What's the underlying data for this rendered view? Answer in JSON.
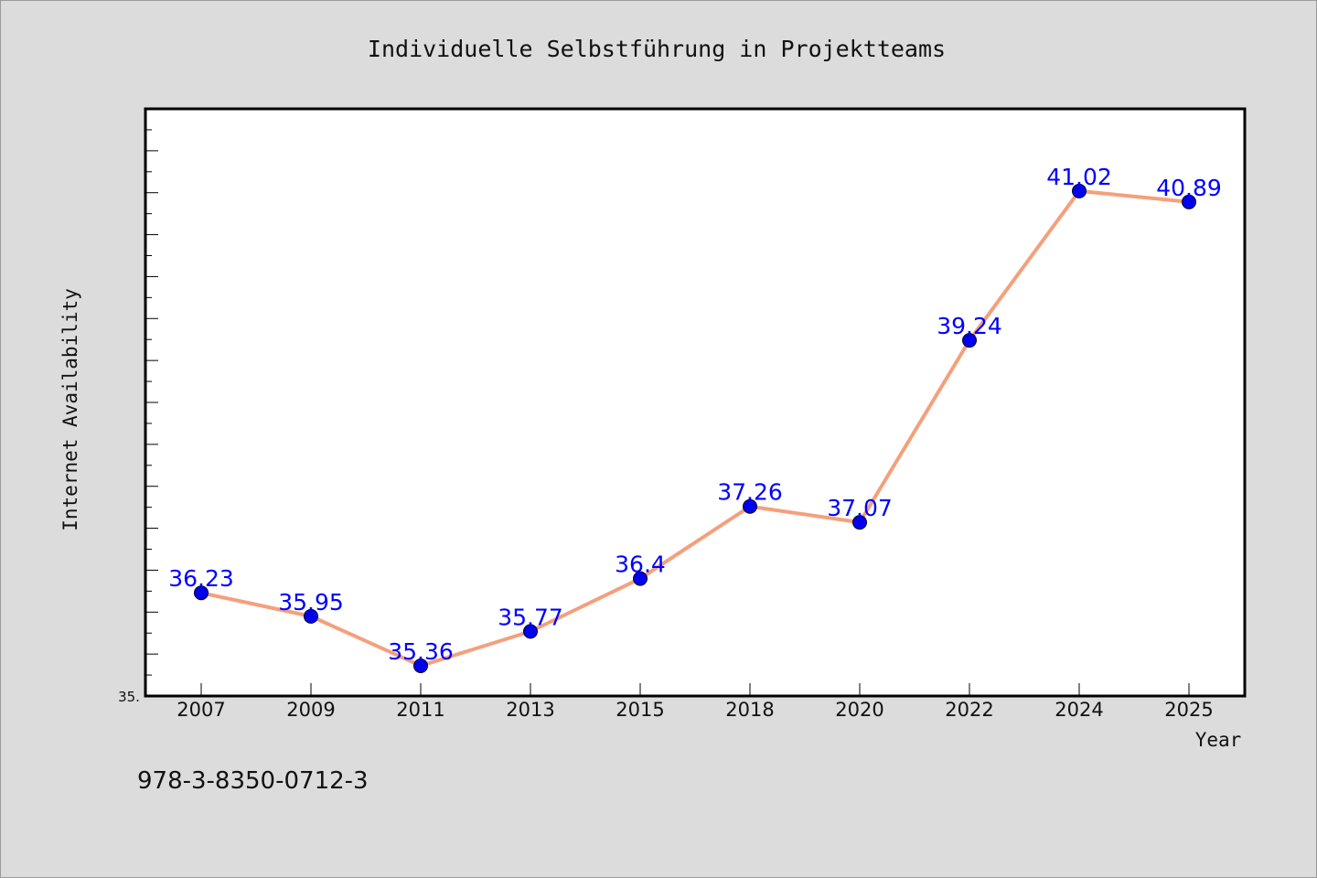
{
  "chart_data": {
    "type": "line",
    "title": "Individuelle Selbstführung in Projektteams",
    "xlabel": "Year",
    "ylabel": "Internet Availability",
    "categories": [
      "2007",
      "2009",
      "2011",
      "2013",
      "2015",
      "2018",
      "2020",
      "2022",
      "2024",
      "2025"
    ],
    "series": [
      {
        "values": [
          36.23,
          35.95,
          35.36,
          35.77,
          36.4,
          37.26,
          37.07,
          39.24,
          41.02,
          40.89
        ],
        "data_labels": [
          "36.23",
          "35.95",
          "35.36",
          "35.77",
          "36.4",
          "37.26",
          "37.07",
          "39.24",
          "41.02",
          "40.89"
        ],
        "line_color": "#f4a07c",
        "marker_color": "#0000ee"
      }
    ],
    "ylim": [
      35.0,
      42.0
    ],
    "ytick_labels": [
      "35."
    ],
    "grid": false,
    "legend": "none"
  },
  "footer": {
    "isbn": "978-3-8350-0712-3"
  },
  "colors": {
    "background": "#dcdcdc",
    "plot_background": "#ffffff",
    "data_label": "#0000ff"
  }
}
